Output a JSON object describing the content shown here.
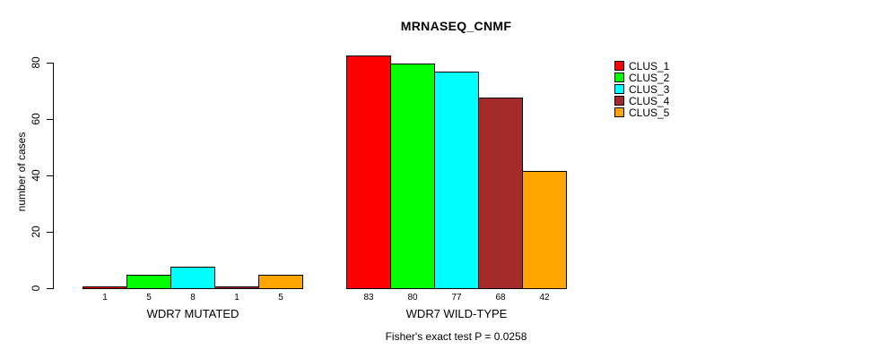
{
  "chart_data": {
    "type": "bar",
    "title": "MRNASEQ_CNMF",
    "ylabel": "number of cases",
    "xlabel": "",
    "ylim": [
      0,
      85
    ],
    "yticks": [
      0,
      20,
      40,
      60,
      80
    ],
    "grid": false,
    "legend_position": "top-right",
    "categories": [
      "WDR7 MUTATED",
      "WDR7 WILD-TYPE"
    ],
    "series": [
      {
        "name": "CLUS_1",
        "color": "#FF0000",
        "values": [
          1,
          83
        ]
      },
      {
        "name": "CLUS_2",
        "color": "#00FF00",
        "values": [
          5,
          80
        ]
      },
      {
        "name": "CLUS_3",
        "color": "#00FFFF",
        "values": [
          8,
          77
        ]
      },
      {
        "name": "CLUS_4",
        "color": "#A52A2A",
        "values": [
          1,
          68
        ]
      },
      {
        "name": "CLUS_5",
        "color": "#FFA500",
        "values": [
          5,
          42
        ]
      }
    ],
    "bar_value_labels": [
      [
        "1",
        "5",
        "8",
        "1",
        "5"
      ],
      [
        "83",
        "80",
        "77",
        "68",
        "42"
      ]
    ],
    "annotation": "Fisher's exact test P = 0.0258",
    "background_color": "#FFFFFF",
    "axis_color": "#000000"
  }
}
